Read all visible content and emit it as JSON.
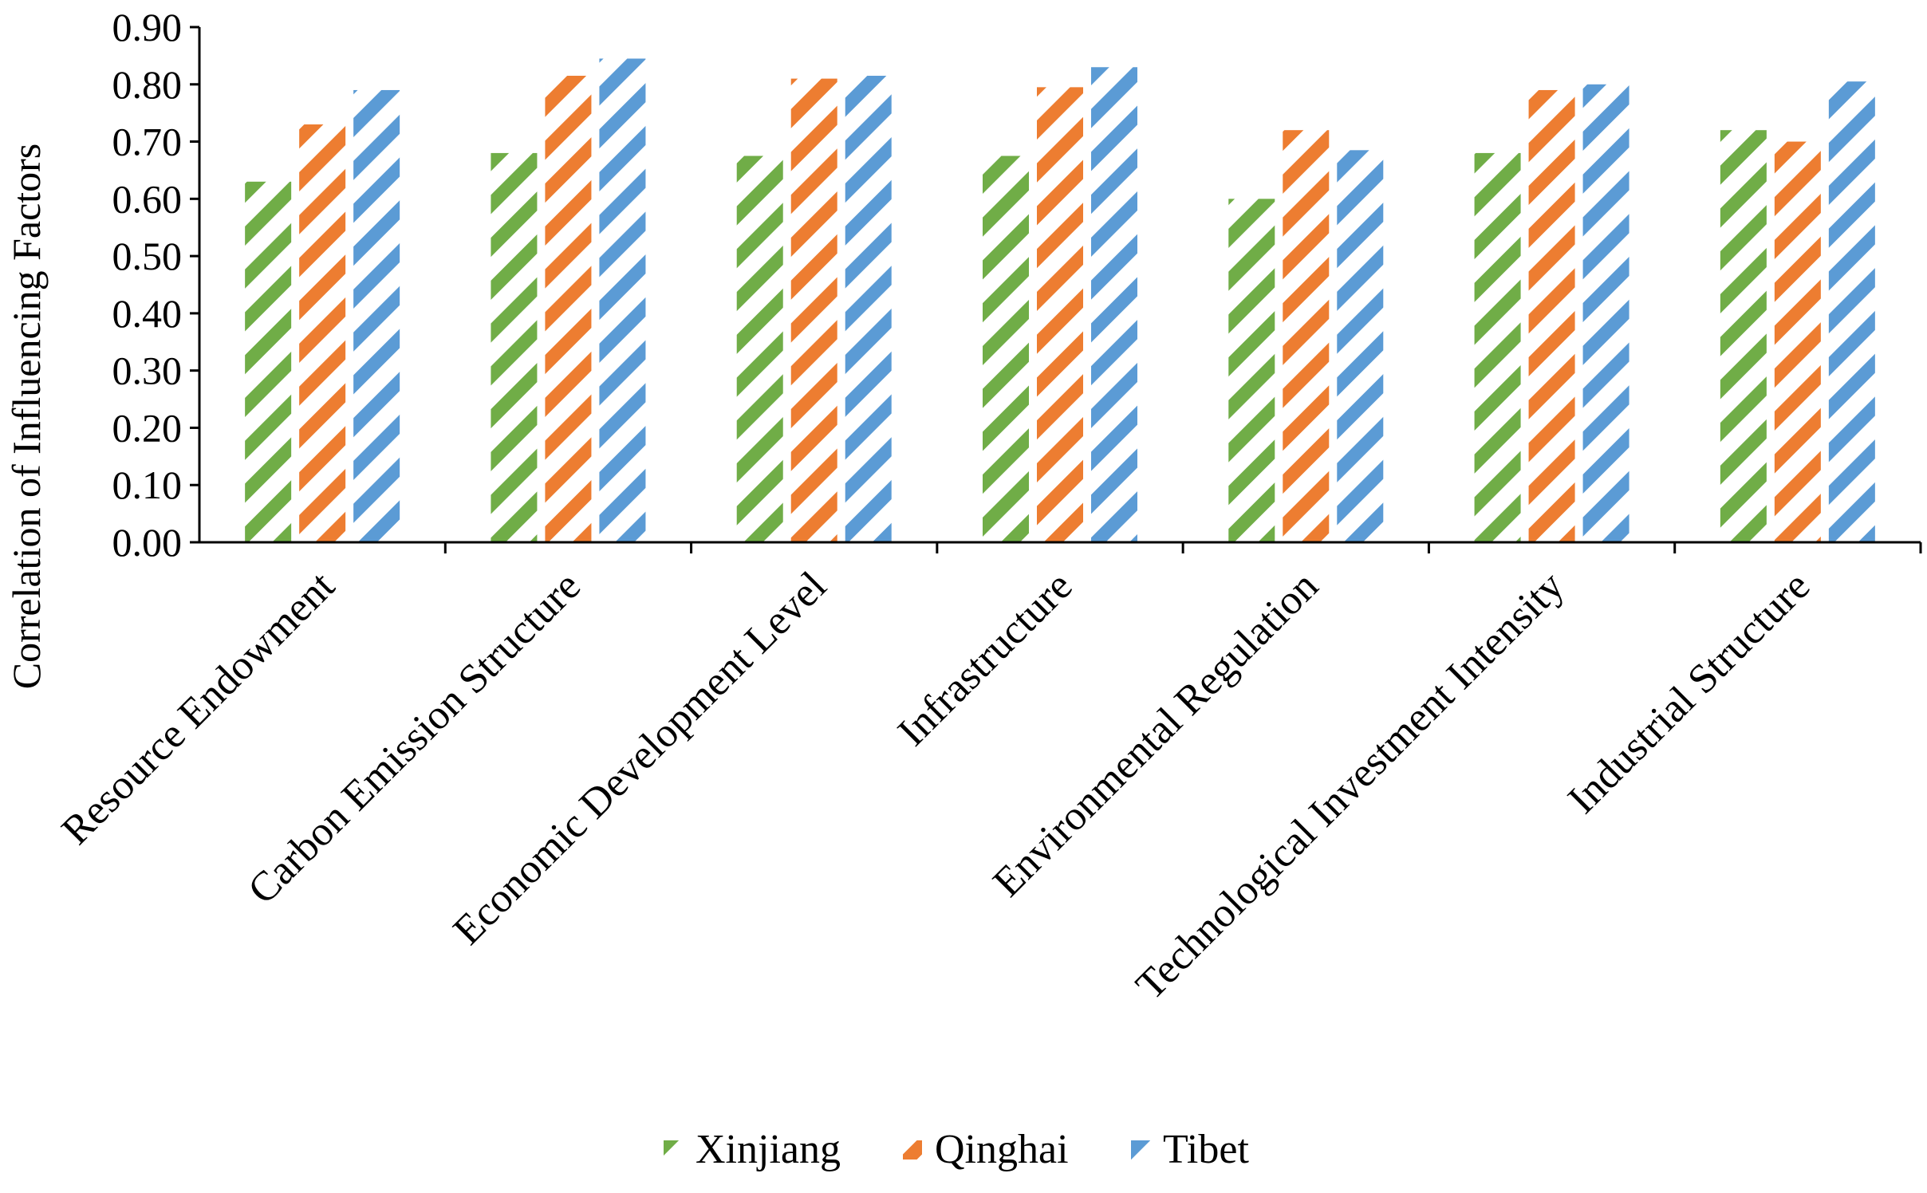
{
  "chart_data": {
    "type": "bar",
    "title": "",
    "xlabel": "",
    "ylabel": "Correlation of Influencing Factors",
    "ylim": [
      0,
      0.9
    ],
    "ytick_step": 0.1,
    "ytick_labels": [
      "0.00",
      "0.10",
      "0.20",
      "0.30",
      "0.40",
      "0.50",
      "0.60",
      "0.70",
      "0.80",
      "0.90"
    ],
    "grid": false,
    "legend_position": "bottom",
    "categories": [
      "Resource Endowment",
      "Carbon Emission Structure",
      "Economic Development Level",
      "Infrastructure",
      "Environmental Regulation",
      "Technological Investment Intensity",
      "Industrial Structure"
    ],
    "series": [
      {
        "name": "Xinjiang",
        "color": "#70ad47",
        "values": [
          0.63,
          0.68,
          0.675,
          0.675,
          0.6,
          0.68,
          0.72
        ]
      },
      {
        "name": "Qinghai",
        "color": "#ed7d31",
        "values": [
          0.73,
          0.815,
          0.81,
          0.795,
          0.72,
          0.79,
          0.7
        ]
      },
      {
        "name": "Tibet",
        "color": "#5b9bd5",
        "values": [
          0.79,
          0.845,
          0.815,
          0.83,
          0.685,
          0.8,
          0.805
        ]
      }
    ]
  }
}
